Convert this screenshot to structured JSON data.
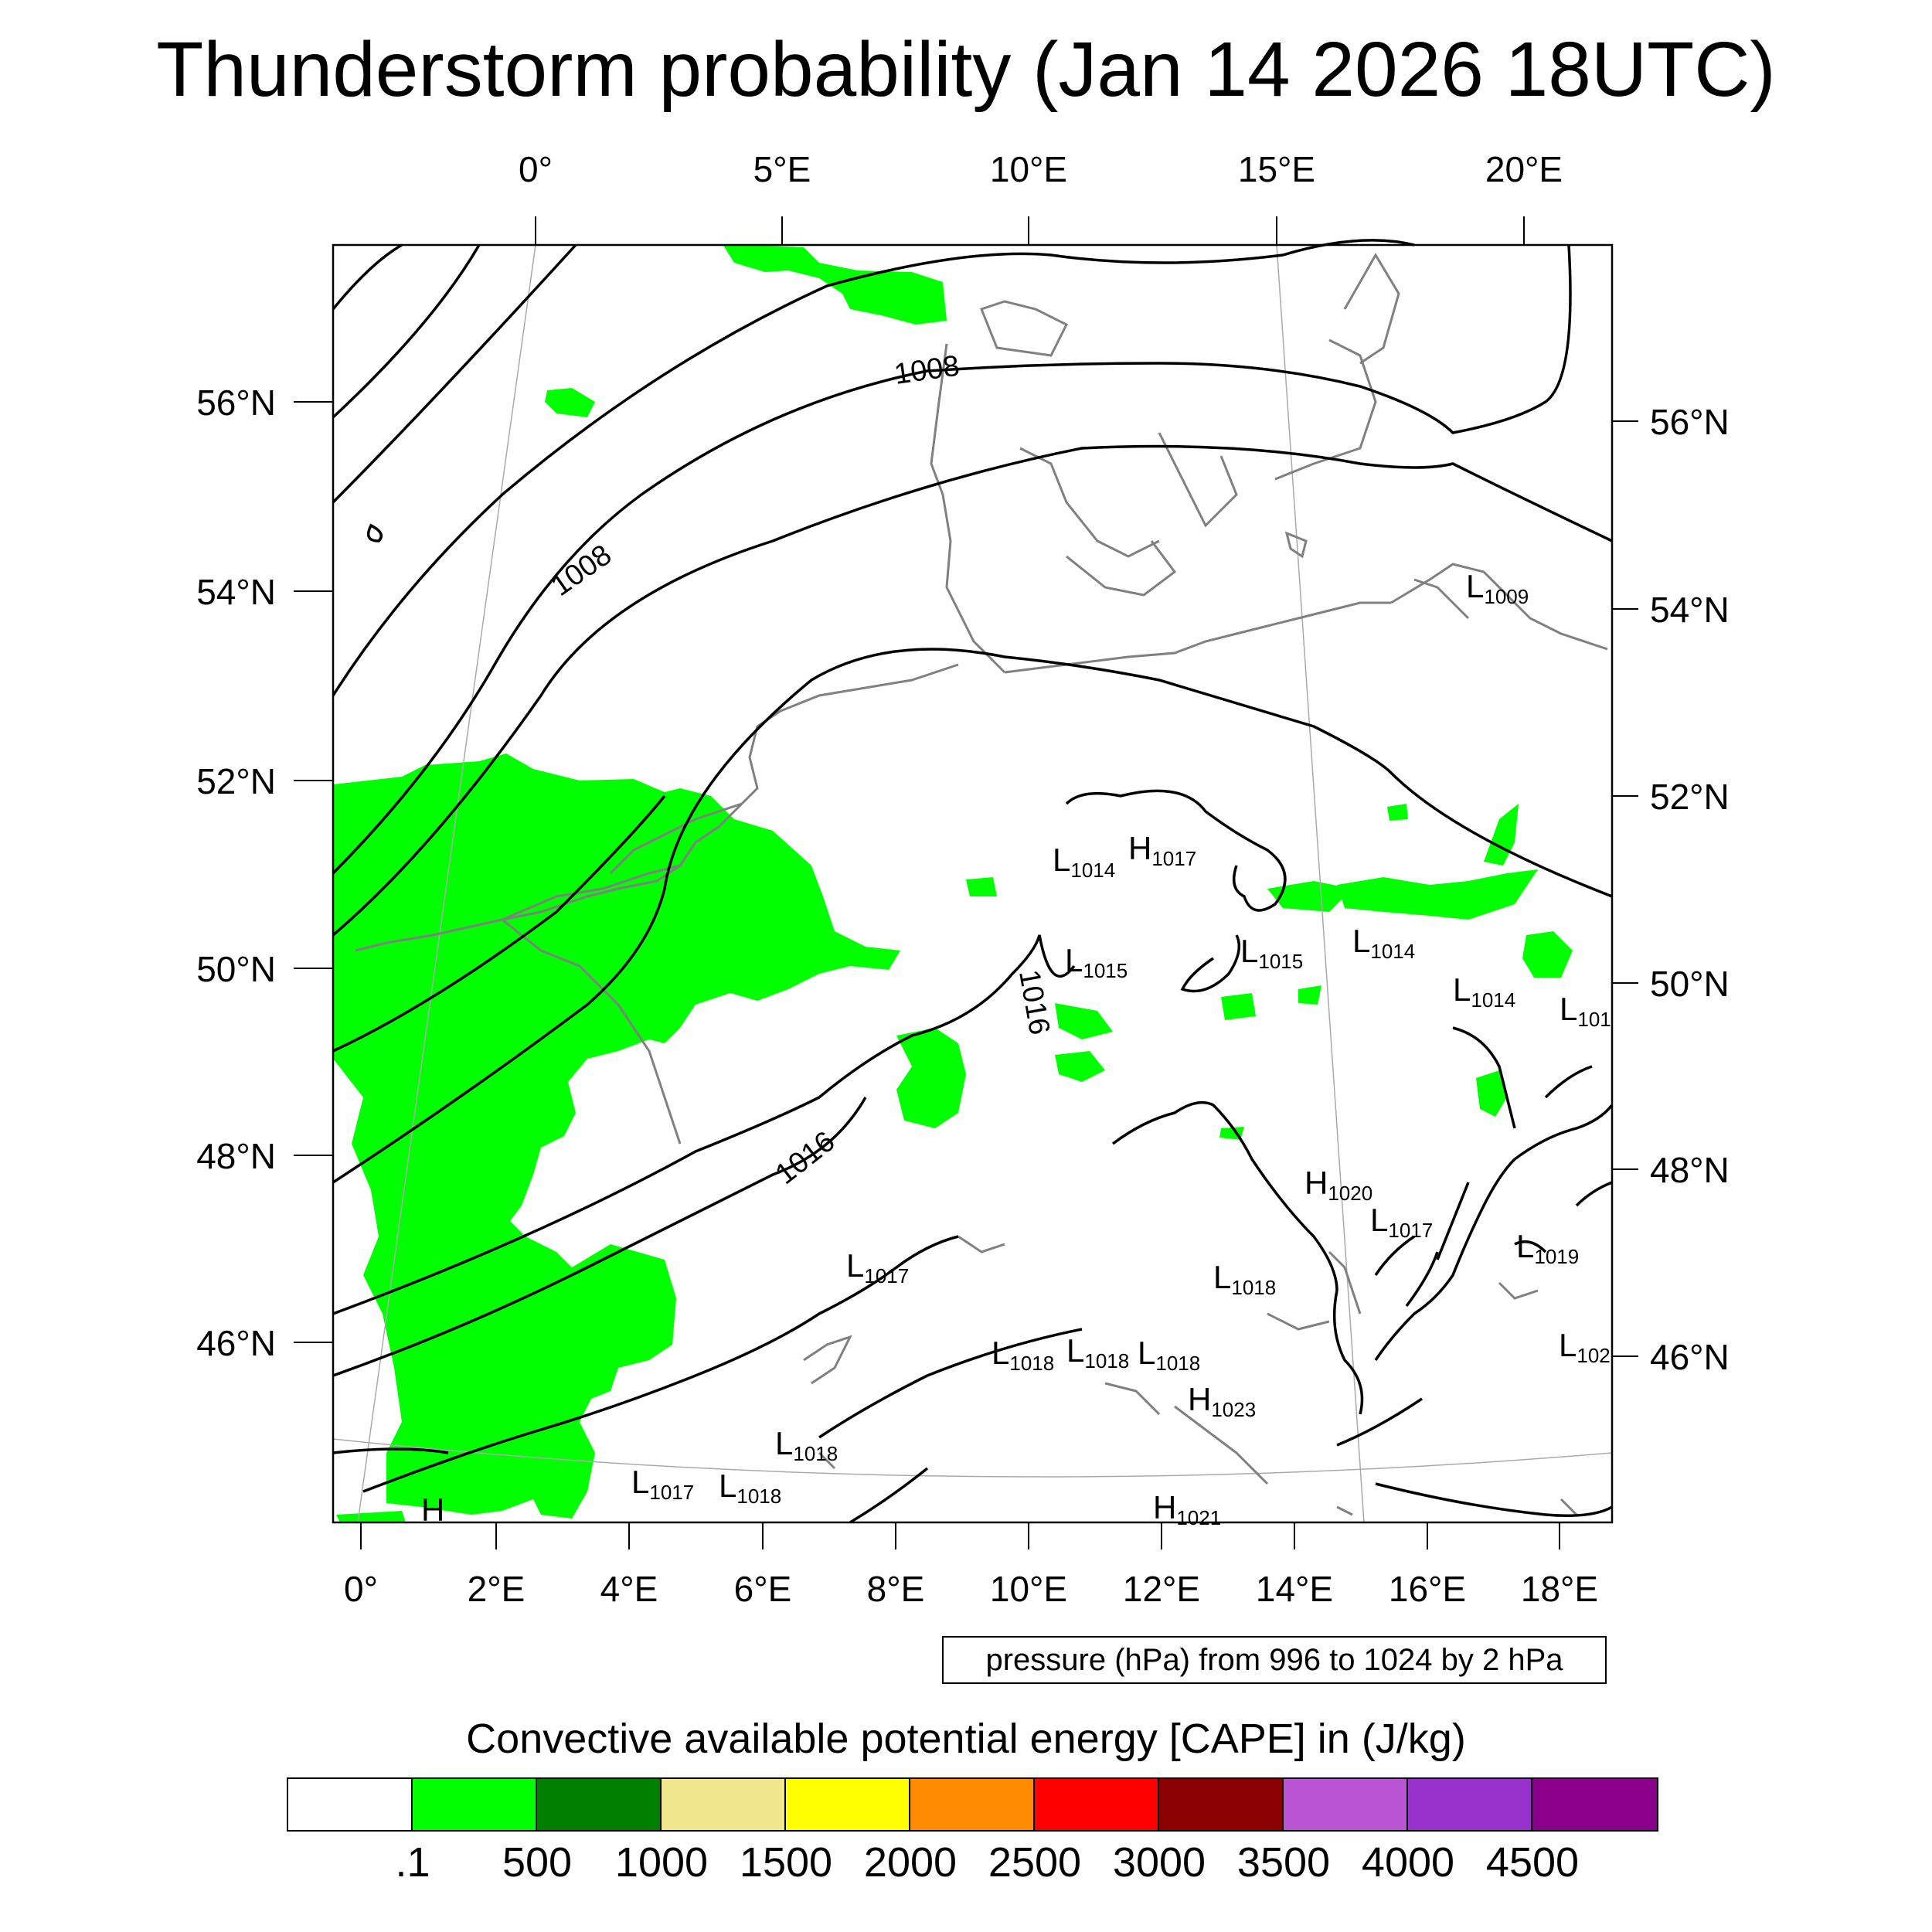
{
  "title": "Thunderstorm probability (Jan 14 2026 18UTC)",
  "map": {
    "top_lon_labels": [
      "0°",
      "5°E",
      "10°E",
      "15°E",
      "20°E"
    ],
    "bottom_lon_labels": [
      "0°",
      "2°E",
      "4°E",
      "6°E",
      "8°E",
      "10°E",
      "12°E",
      "14°E",
      "16°E",
      "18°E"
    ],
    "left_lat_labels": [
      "56°N",
      "54°N",
      "52°N",
      "50°N",
      "48°N",
      "46°N"
    ],
    "right_lat_labels": [
      "56°N",
      "54°N",
      "52°N",
      "50°N",
      "48°N",
      "46°N"
    ],
    "isobar_labels": [
      "1008",
      "1008",
      "1016",
      "1016"
    ],
    "pressure_centers": [
      {
        "type": "L",
        "value": "1009"
      },
      {
        "type": "L",
        "value": "1014"
      },
      {
        "type": "H",
        "value": "1017"
      },
      {
        "type": "L",
        "value": "1015"
      },
      {
        "type": "L",
        "value": "1015"
      },
      {
        "type": "L",
        "value": "1014"
      },
      {
        "type": "L",
        "value": "1014"
      },
      {
        "type": "L",
        "value": "101"
      },
      {
        "type": "H",
        "value": "1020"
      },
      {
        "type": "L",
        "value": "1017"
      },
      {
        "type": "L",
        "value": "1019"
      },
      {
        "type": "L",
        "value": "1017"
      },
      {
        "type": "L",
        "value": "1018"
      },
      {
        "type": "L",
        "value": "102"
      },
      {
        "type": "L",
        "value": "1018"
      },
      {
        "type": "L",
        "value": "1018"
      },
      {
        "type": "L",
        "value": "1018"
      },
      {
        "type": "H",
        "value": "1023"
      },
      {
        "type": "L",
        "value": "1018"
      },
      {
        "type": "L",
        "value": "1017"
      },
      {
        "type": "L",
        "value": "1018"
      },
      {
        "type": "H",
        "value": "1021"
      },
      {
        "type": "H",
        "value": ""
      }
    ],
    "cape_fill_color": "#00ff00",
    "isobar_color": "#000000",
    "coastline_color": "#808080"
  },
  "pressure_note": "pressure (hPa) from 996 to 1024 by 2 hPa",
  "colorbar": {
    "title": "Convective available potential energy [CAPE] in (J/kg)",
    "colors": [
      "#ffffff",
      "#00ff00",
      "#008000",
      "#f0e68c",
      "#ffff00",
      "#ff8c00",
      "#ff0000",
      "#8b0000",
      "#ba55d3",
      "#9932cc",
      "#8b008b"
    ],
    "ticks": [
      ".1",
      "500",
      "1000",
      "1500",
      "2000",
      "2500",
      "3000",
      "3500",
      "4000",
      "4500"
    ]
  }
}
